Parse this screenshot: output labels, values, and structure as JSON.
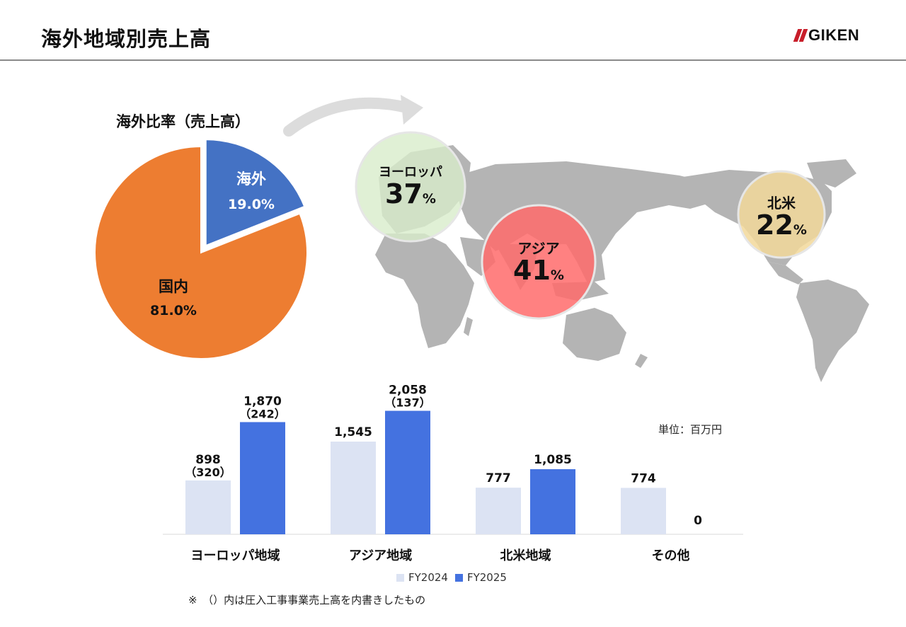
{
  "header": {
    "title": "海外地域別売上高",
    "logo_text": "GIKEN"
  },
  "pie": {
    "title": "海外比率（売上高）",
    "slices": [
      {
        "name": "海外",
        "value": 19.0,
        "label": "19.0%",
        "color": "#4472c4"
      },
      {
        "name": "国内",
        "value": 81.0,
        "label": "81.0%",
        "color": "#ed7d31"
      }
    ]
  },
  "map": {
    "bubbles": [
      {
        "name": "ヨーロッパ",
        "pct": "37",
        "unit": "%",
        "color": "#d8eccb"
      },
      {
        "name": "アジア",
        "pct": "41",
        "unit": "%",
        "color": "#ff6b6b"
      },
      {
        "name": "北米",
        "pct": "22",
        "unit": "%",
        "color": "#f2d89a"
      }
    ]
  },
  "unit_label": "単位：百万円",
  "footnote": "※　（）内は圧入工事事業売上高を内書きしたもの",
  "chart_data": {
    "type": "bar",
    "categories": [
      "ヨーロッパ地域",
      "アジア地域",
      "北米地域",
      "その他"
    ],
    "series": [
      {
        "name": "FY2024",
        "values": [
          898,
          1545,
          777,
          774
        ],
        "sub_labels": [
          "（320）",
          "",
          "",
          ""
        ],
        "color": "#dce3f3"
      },
      {
        "name": "FY2025",
        "values": [
          1870,
          2058,
          1085,
          0
        ],
        "sub_labels": [
          "（242）",
          "（137）",
          "",
          ""
        ],
        "color": "#4472e0"
      }
    ],
    "value_labels": [
      [
        "898",
        "1,545",
        "777",
        "774"
      ],
      [
        "1,870",
        "2,058",
        "1,085",
        "0"
      ]
    ],
    "ylim": [
      0,
      2300
    ],
    "legend_position": "bottom"
  }
}
